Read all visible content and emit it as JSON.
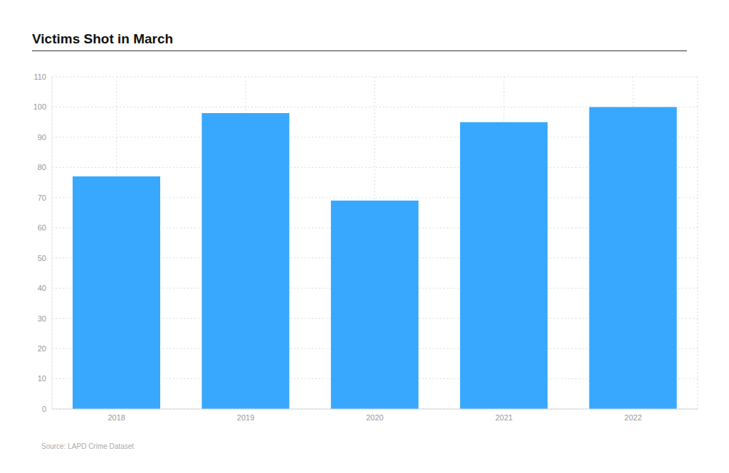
{
  "chart_data": {
    "type": "bar",
    "title": "Victims Shot in March",
    "source": "Source: LAPD Crime Dataset",
    "categories": [
      "2018",
      "2019",
      "2020",
      "2021",
      "2022"
    ],
    "values": [
      77,
      98,
      69,
      95,
      100
    ],
    "color": "#38a8fe",
    "ylim": [
      0,
      110
    ],
    "yticks": [
      0,
      10,
      20,
      30,
      40,
      50,
      60,
      70,
      80,
      90,
      100,
      110
    ],
    "grid": true
  }
}
